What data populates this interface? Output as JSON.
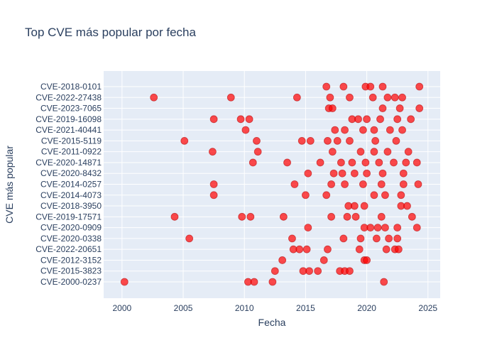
{
  "chart_data": {
    "type": "scatter",
    "title": "Top CVE más popular por fecha",
    "xlabel": "Fecha",
    "ylabel": "CVE más popular",
    "xlim": [
      1998.5,
      2026.0
    ],
    "x_ticks": [
      2000,
      2005,
      2010,
      2015,
      2020,
      2025
    ],
    "grid": true,
    "legend": false,
    "marker_color": "#ff0000",
    "marker_opacity": 0.7,
    "plot_background": "#e5ecf6",
    "categories": [
      "CVE-2000-0237",
      "CVE-2015-3823",
      "CVE-2012-3152",
      "CVE-2022-20651",
      "CVE-2020-0338",
      "CVE-2020-0909",
      "CVE-2019-17571",
      "CVE-2018-3950",
      "CVE-2014-4073",
      "CVE-2014-0257",
      "CVE-2020-8432",
      "CVE-2020-14871",
      "CVE-2011-0922",
      "CVE-2015-5119",
      "CVE-2021-40441",
      "CVE-2019-16098",
      "CVE-2023-7065",
      "CVE-2022-27438",
      "CVE-2018-0101"
    ],
    "points": [
      [
        2000.2,
        0
      ],
      [
        2010.3,
        0
      ],
      [
        2010.8,
        0
      ],
      [
        2012.3,
        0
      ],
      [
        2021.4,
        0
      ],
      [
        2012.5,
        1
      ],
      [
        2014.8,
        1
      ],
      [
        2015.3,
        1
      ],
      [
        2016.0,
        1
      ],
      [
        2017.8,
        1
      ],
      [
        2018.2,
        1
      ],
      [
        2018.6,
        1
      ],
      [
        2013.1,
        2
      ],
      [
        2016.5,
        2
      ],
      [
        2019.8,
        2
      ],
      [
        2020.0,
        2
      ],
      [
        2014.0,
        3
      ],
      [
        2014.5,
        3
      ],
      [
        2015.1,
        3
      ],
      [
        2016.8,
        3
      ],
      [
        2019.4,
        3
      ],
      [
        2021.6,
        3
      ],
      [
        2022.3,
        3
      ],
      [
        2022.6,
        3
      ],
      [
        2005.5,
        4
      ],
      [
        2013.9,
        4
      ],
      [
        2018.1,
        4
      ],
      [
        2019.5,
        4
      ],
      [
        2020.8,
        4
      ],
      [
        2021.8,
        4
      ],
      [
        2022.5,
        4
      ],
      [
        2015.2,
        5
      ],
      [
        2019.8,
        5
      ],
      [
        2020.3,
        5
      ],
      [
        2020.9,
        5
      ],
      [
        2021.5,
        5
      ],
      [
        2022.5,
        5
      ],
      [
        2024.1,
        5
      ],
      [
        2004.3,
        6
      ],
      [
        2009.8,
        6
      ],
      [
        2010.5,
        6
      ],
      [
        2013.2,
        6
      ],
      [
        2017.1,
        6
      ],
      [
        2018.4,
        6
      ],
      [
        2019.1,
        6
      ],
      [
        2021.2,
        6
      ],
      [
        2023.7,
        6
      ],
      [
        2018.5,
        7
      ],
      [
        2019.0,
        7
      ],
      [
        2019.8,
        7
      ],
      [
        2022.8,
        7
      ],
      [
        2023.3,
        7
      ],
      [
        2007.5,
        8
      ],
      [
        2015.0,
        8
      ],
      [
        2016.7,
        8
      ],
      [
        2020.6,
        8
      ],
      [
        2021.5,
        8
      ],
      [
        2022.8,
        8
      ],
      [
        2007.5,
        9
      ],
      [
        2014.1,
        9
      ],
      [
        2017.1,
        9
      ],
      [
        2018.2,
        9
      ],
      [
        2019.7,
        9
      ],
      [
        2021.2,
        9
      ],
      [
        2023.0,
        9
      ],
      [
        2024.2,
        9
      ],
      [
        2015.2,
        10
      ],
      [
        2017.3,
        10
      ],
      [
        2018.0,
        10
      ],
      [
        2019.0,
        10
      ],
      [
        2020.0,
        10
      ],
      [
        2021.3,
        10
      ],
      [
        2023.0,
        10
      ],
      [
        2010.7,
        11
      ],
      [
        2013.5,
        11
      ],
      [
        2016.2,
        11
      ],
      [
        2017.9,
        11
      ],
      [
        2018.8,
        11
      ],
      [
        2019.9,
        11
      ],
      [
        2021.0,
        11
      ],
      [
        2022.2,
        11
      ],
      [
        2023.2,
        11
      ],
      [
        2024.1,
        11
      ],
      [
        2007.4,
        12
      ],
      [
        2011.1,
        12
      ],
      [
        2017.2,
        12
      ],
      [
        2019.5,
        12
      ],
      [
        2020.6,
        12
      ],
      [
        2021.7,
        12
      ],
      [
        2023.4,
        12
      ],
      [
        2005.1,
        13
      ],
      [
        2011.0,
        13
      ],
      [
        2014.7,
        13
      ],
      [
        2015.4,
        13
      ],
      [
        2016.8,
        13
      ],
      [
        2017.6,
        13
      ],
      [
        2018.6,
        13
      ],
      [
        2020.7,
        13
      ],
      [
        2022.4,
        13
      ],
      [
        2010.1,
        14
      ],
      [
        2017.4,
        14
      ],
      [
        2018.2,
        14
      ],
      [
        2019.7,
        14
      ],
      [
        2020.6,
        14
      ],
      [
        2021.9,
        14
      ],
      [
        2022.9,
        14
      ],
      [
        2007.5,
        15
      ],
      [
        2009.7,
        15
      ],
      [
        2010.4,
        15
      ],
      [
        2018.8,
        15
      ],
      [
        2019.3,
        15
      ],
      [
        2020.0,
        15
      ],
      [
        2021.1,
        15
      ],
      [
        2022.5,
        15
      ],
      [
        2023.6,
        15
      ],
      [
        2016.9,
        16
      ],
      [
        2017.2,
        16
      ],
      [
        2021.3,
        16
      ],
      [
        2022.7,
        16
      ],
      [
        2024.3,
        16
      ],
      [
        2002.6,
        17
      ],
      [
        2008.9,
        17
      ],
      [
        2014.3,
        17
      ],
      [
        2017.0,
        17
      ],
      [
        2018.6,
        17
      ],
      [
        2020.5,
        17
      ],
      [
        2021.7,
        17
      ],
      [
        2022.3,
        17
      ],
      [
        2022.9,
        17
      ],
      [
        2016.7,
        18
      ],
      [
        2018.1,
        18
      ],
      [
        2019.9,
        18
      ],
      [
        2020.3,
        18
      ],
      [
        2021.3,
        18
      ],
      [
        2024.3,
        18
      ]
    ]
  }
}
